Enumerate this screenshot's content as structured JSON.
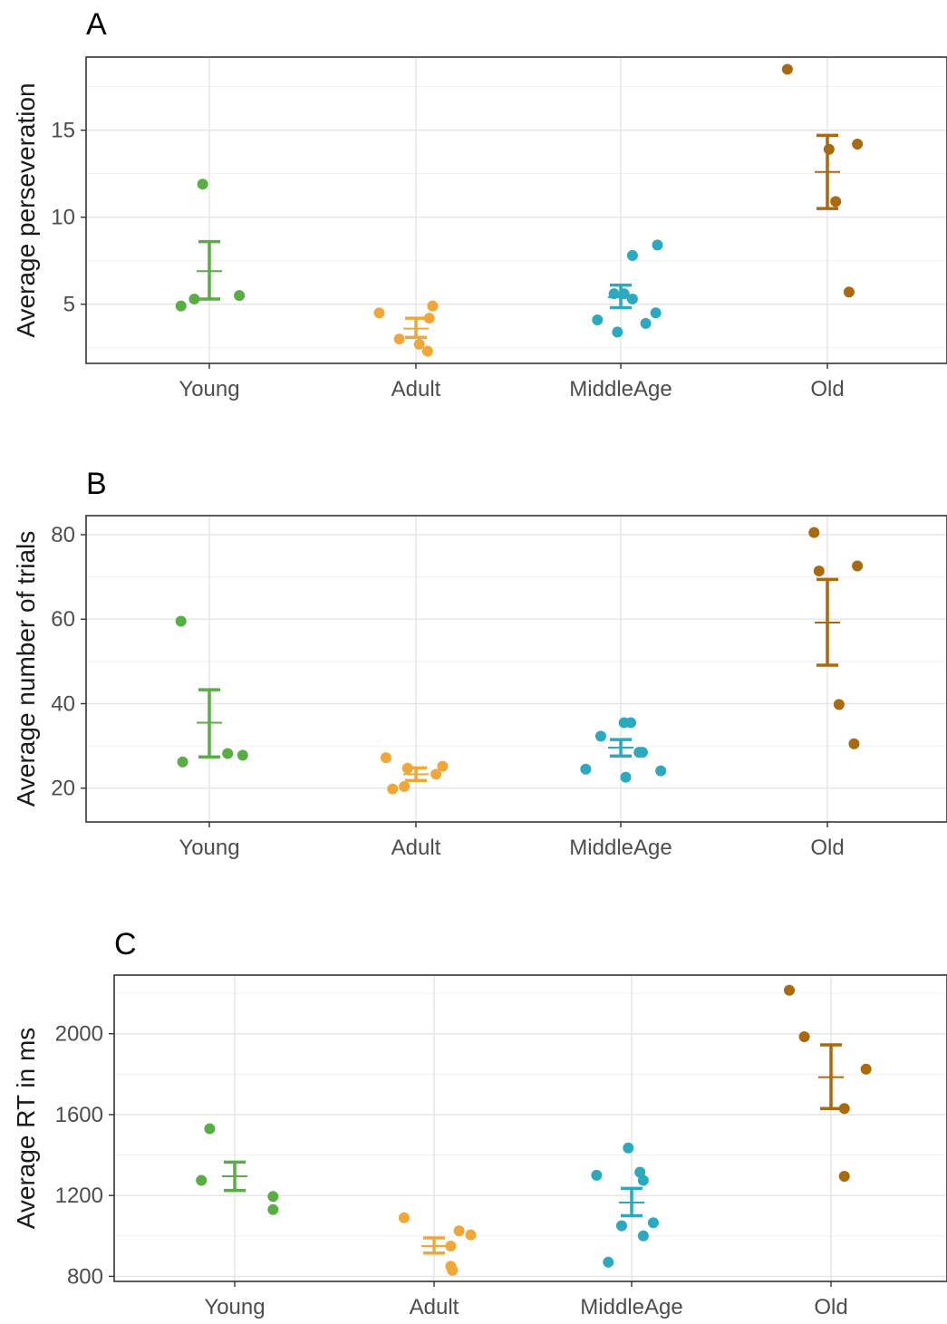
{
  "chart_data": [
    {
      "type": "scatter",
      "panel_label": "A",
      "ylabel": "Average perseveration",
      "xlabel": "",
      "categories": [
        "Young",
        "Adult",
        "MiddleAge",
        "Old"
      ],
      "ylim": [
        1.6,
        19.2
      ],
      "yticks": [
        5,
        10,
        15
      ],
      "ytick_labels": [
        "5",
        "10",
        "15"
      ],
      "grid": true,
      "colors": [
        "#5aac44",
        "#f0a73a",
        "#2aa9bf",
        "#a8690f"
      ],
      "points": [
        [
          [
            -0.17,
            4.9
          ],
          [
            -0.09,
            5.3
          ],
          [
            -0.04,
            11.9
          ],
          [
            0.18,
            5.5
          ]
        ],
        [
          [
            -0.22,
            4.5
          ],
          [
            -0.1,
            3.0
          ],
          [
            0.02,
            2.7
          ],
          [
            0.07,
            2.3
          ],
          [
            0.08,
            4.2
          ],
          [
            0.1,
            4.9
          ]
        ],
        [
          [
            -0.14,
            4.1
          ],
          [
            -0.02,
            3.4
          ],
          [
            -0.04,
            5.6
          ],
          [
            0.02,
            5.6
          ],
          [
            0.07,
            5.3
          ],
          [
            0.07,
            7.8
          ],
          [
            0.15,
            3.9
          ],
          [
            0.21,
            4.5
          ],
          [
            0.22,
            8.4
          ]
        ],
        [
          [
            -0.24,
            18.5
          ],
          [
            0.01,
            13.9
          ],
          [
            0.05,
            10.9
          ],
          [
            0.13,
            5.7
          ],
          [
            0.18,
            14.2
          ]
        ]
      ],
      "means": [
        6.9,
        3.6,
        5.4,
        12.6
      ],
      "error_bars": [
        [
          5.3,
          8.6
        ],
        [
          3.1,
          4.2
        ],
        [
          4.8,
          6.1
        ],
        [
          10.5,
          14.7
        ]
      ]
    },
    {
      "type": "scatter",
      "panel_label": "B",
      "ylabel": "Average number of trials",
      "xlabel": "",
      "categories": [
        "Young",
        "Adult",
        "MiddleAge",
        "Old"
      ],
      "ylim": [
        12,
        84.5
      ],
      "yticks": [
        20,
        40,
        60,
        80
      ],
      "ytick_labels": [
        "20",
        "40",
        "60",
        "80"
      ],
      "grid": true,
      "colors": [
        "#5aac44",
        "#f0a73a",
        "#2aa9bf",
        "#a8690f"
      ],
      "points": [
        [
          [
            -0.17,
            59.5
          ],
          [
            -0.16,
            26.2
          ],
          [
            0.11,
            28.2
          ],
          [
            0.2,
            27.8
          ]
        ],
        [
          [
            -0.18,
            27.2
          ],
          [
            -0.14,
            19.8
          ],
          [
            -0.07,
            20.4
          ],
          [
            -0.05,
            24.7
          ],
          [
            0.12,
            23.3
          ],
          [
            0.16,
            25.2
          ]
        ],
        [
          [
            -0.21,
            24.5
          ],
          [
            -0.12,
            32.3
          ],
          [
            0.02,
            35.5
          ],
          [
            0.03,
            22.6
          ],
          [
            0.06,
            35.5
          ],
          [
            0.11,
            28.5
          ],
          [
            0.13,
            28.5
          ],
          [
            0.24,
            24.1
          ]
        ],
        [
          [
            -0.08,
            80.5
          ],
          [
            -0.05,
            71.4
          ],
          [
            0.07,
            39.8
          ],
          [
            0.16,
            30.5
          ],
          [
            0.18,
            72.6
          ]
        ]
      ],
      "means": [
        35.5,
        23.3,
        29.6,
        59.2
      ],
      "error_bars": [
        [
          27.4,
          43.3
        ],
        [
          21.8,
          24.8
        ],
        [
          27.6,
          31.5
        ],
        [
          49.1,
          69.4
        ]
      ]
    },
    {
      "type": "scatter",
      "panel_label": "C",
      "ylabel": "Average RT in ms",
      "xlabel": "",
      "categories": [
        "Young",
        "Adult",
        "MiddleAge",
        "Old"
      ],
      "ylim": [
        775,
        2290
      ],
      "yticks": [
        800,
        1200,
        1600,
        2000
      ],
      "ytick_labels": [
        "800",
        "1200",
        "1600",
        "2000"
      ],
      "grid": true,
      "colors": [
        "#5aac44",
        "#f0a73a",
        "#2aa9bf",
        "#a8690f"
      ],
      "points": [
        [
          [
            -0.2,
            1275
          ],
          [
            -0.15,
            1530
          ],
          [
            0.23,
            1195
          ],
          [
            0.23,
            1130
          ]
        ],
        [
          [
            -0.18,
            1090
          ],
          [
            0.1,
            850
          ],
          [
            0.11,
            830
          ],
          [
            0.1,
            950
          ],
          [
            0.15,
            1025
          ],
          [
            0.22,
            1005
          ]
        ],
        [
          [
            -0.21,
            1300
          ],
          [
            -0.14,
            870
          ],
          [
            -0.06,
            1050
          ],
          [
            -0.02,
            1435
          ],
          [
            0.05,
            1315
          ],
          [
            0.07,
            1275
          ],
          [
            0.07,
            1000
          ],
          [
            0.13,
            1065
          ]
        ],
        [
          [
            -0.25,
            2215
          ],
          [
            -0.16,
            1985
          ],
          [
            0.08,
            1630
          ],
          [
            0.08,
            1295
          ],
          [
            0.21,
            1825
          ]
        ]
      ],
      "means": [
        1295,
        950,
        1165,
        1785
      ],
      "error_bars": [
        [
          1225,
          1365
        ],
        [
          915,
          990
        ],
        [
          1100,
          1235
        ],
        [
          1630,
          1945
        ]
      ]
    }
  ]
}
